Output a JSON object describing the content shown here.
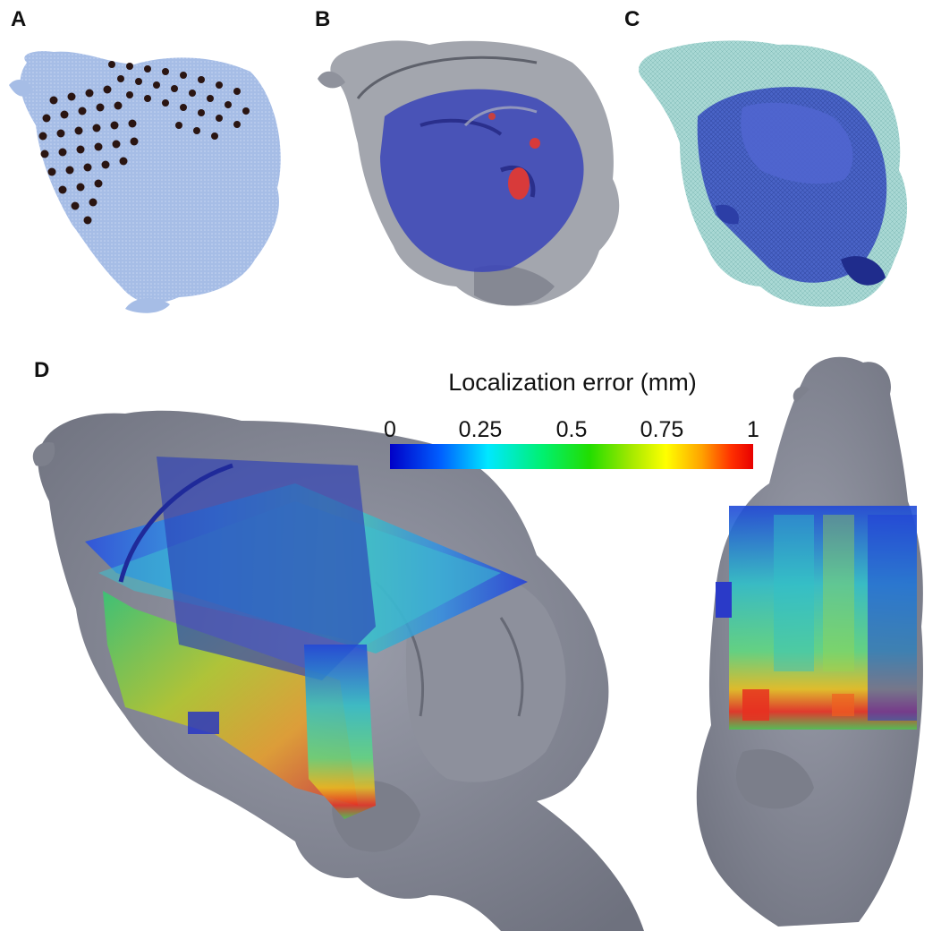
{
  "panels": {
    "a": {
      "label": "A"
    },
    "b": {
      "label": "B"
    },
    "c": {
      "label": "C"
    },
    "d": {
      "label": "D"
    }
  },
  "colorbar": {
    "title": "Localization error (mm)",
    "ticks": [
      "0",
      "0.25",
      "0.5",
      "0.75",
      "1"
    ],
    "range": [
      0,
      1
    ],
    "colors": [
      "#0000c8",
      "#00e8ff",
      "#22dd00",
      "#ffff00",
      "#e80000"
    ]
  },
  "colors": {
    "brain_surface_a": "#a8bfe8",
    "brain_gray": "#8a8d99",
    "brain_teal": "#9fd3d0",
    "inner_blue": "#3a44b8",
    "electrode": "#2a1512"
  }
}
